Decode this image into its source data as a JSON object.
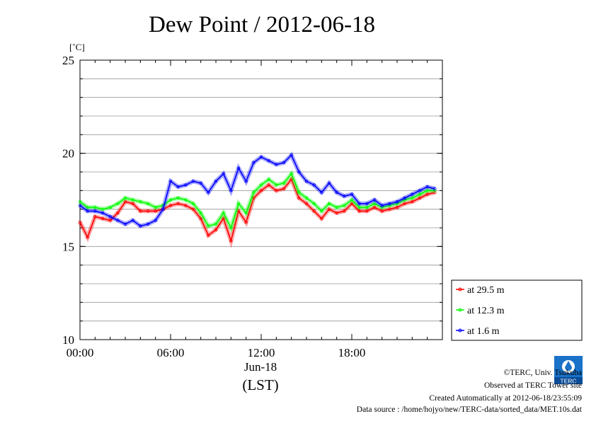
{
  "chart_data": {
    "type": "line",
    "title": "Dew Point / 2012-06-18",
    "ylabel": "[˚C]",
    "xlabel": "(LST)",
    "date_label": "Jun-18",
    "xlim": [
      0,
      24
    ],
    "ylim": [
      10,
      25
    ],
    "x_ticks": [
      {
        "value": 0,
        "label": "00:00"
      },
      {
        "value": 6,
        "label": "06:00"
      },
      {
        "value": 12,
        "label": "12:00"
      },
      {
        "value": 18,
        "label": "18:00"
      }
    ],
    "y_ticks": [
      {
        "value": 10,
        "label": "10"
      },
      {
        "value": 15,
        "label": "15"
      },
      {
        "value": 20,
        "label": "20"
      },
      {
        "value": 25,
        "label": "25"
      }
    ],
    "grid": true,
    "legend_position": "bottom-right",
    "x": [
      0,
      0.5,
      1,
      1.5,
      2,
      2.5,
      3,
      3.5,
      4,
      4.5,
      5,
      5.5,
      6,
      6.5,
      7,
      7.5,
      8,
      8.5,
      9,
      9.5,
      10,
      10.5,
      11,
      11.5,
      12,
      12.5,
      13,
      13.5,
      14,
      14.5,
      15,
      15.5,
      16,
      16.5,
      17,
      17.5,
      18,
      18.5,
      19,
      19.5,
      20,
      20.5,
      21,
      21.5,
      22,
      22.5,
      23,
      23.5
    ],
    "series": [
      {
        "name": "at 29.5 m",
        "color": "#ff0000",
        "values": [
          16.3,
          15.5,
          16.6,
          16.5,
          16.4,
          16.8,
          17.4,
          17.3,
          16.9,
          16.9,
          16.9,
          17.0,
          17.2,
          17.3,
          17.2,
          17.0,
          16.5,
          15.6,
          15.9,
          16.5,
          15.3,
          16.9,
          16.3,
          17.6,
          18.0,
          18.3,
          18.0,
          18.1,
          18.6,
          17.6,
          17.3,
          16.9,
          16.5,
          17.0,
          16.8,
          16.9,
          17.3,
          16.9,
          16.9,
          17.1,
          16.9,
          17.0,
          17.1,
          17.3,
          17.4,
          17.6,
          17.8,
          17.9
        ]
      },
      {
        "name": "at 12.3 m",
        "color": "#00ff00",
        "values": [
          17.4,
          17.1,
          17.1,
          17.0,
          17.1,
          17.3,
          17.6,
          17.5,
          17.4,
          17.3,
          17.1,
          17.2,
          17.5,
          17.6,
          17.5,
          17.3,
          16.8,
          16.1,
          16.2,
          16.8,
          16.0,
          17.3,
          16.8,
          17.9,
          18.3,
          18.6,
          18.3,
          18.4,
          18.9,
          17.9,
          17.6,
          17.3,
          16.9,
          17.3,
          17.1,
          17.2,
          17.5,
          17.1,
          17.1,
          17.3,
          17.1,
          17.2,
          17.3,
          17.5,
          17.6,
          17.8,
          18.0,
          18.0
        ]
      },
      {
        "name": "at 1.6 m",
        "color": "#0000ff",
        "values": [
          17.2,
          16.9,
          16.9,
          16.8,
          16.6,
          16.4,
          16.2,
          16.4,
          16.1,
          16.2,
          16.4,
          17.0,
          18.5,
          18.2,
          18.3,
          18.5,
          18.4,
          17.9,
          18.5,
          18.9,
          18.0,
          19.2,
          18.5,
          19.5,
          19.8,
          19.6,
          19.4,
          19.5,
          19.9,
          19.0,
          18.5,
          18.3,
          17.9,
          18.4,
          17.9,
          17.7,
          17.8,
          17.3,
          17.3,
          17.5,
          17.2,
          17.3,
          17.4,
          17.6,
          17.8,
          18.0,
          18.2,
          18.1
        ]
      }
    ]
  },
  "footer": {
    "copyright": "©TERC, Univ. Tsukuba",
    "observed": "Observed at TERC Tower site",
    "created": "Created Automatically at 2012-06-18/23:55:09",
    "source": "Data source : /home/hojyo/new/TERC-data/sorted_data/MET.10s.dat"
  },
  "logo": {
    "text": "TERC",
    "icon": "terc-logo-icon"
  }
}
